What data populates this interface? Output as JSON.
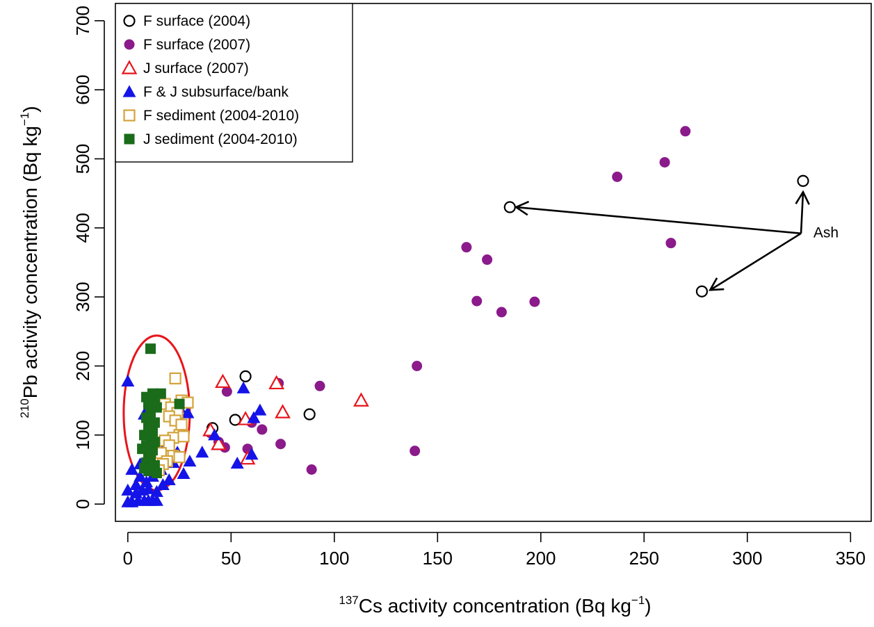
{
  "chart_data": {
    "type": "scatter",
    "title": "",
    "xlabel": {
      "pre": "",
      "sup": "137",
      "main": "Cs activity concentration (Bq kg",
      "unit_sup": "−1",
      "post": ")"
    },
    "ylabel": {
      "pre": "",
      "sup": "210",
      "main": "Pb activity concentration (Bq kg",
      "unit_sup": "−1",
      "post": ")"
    },
    "xlim": [
      -6,
      360
    ],
    "ylim": [
      -25,
      725
    ],
    "xticks": [
      0,
      50,
      100,
      150,
      200,
      250,
      300,
      350
    ],
    "yticks": [
      0,
      100,
      200,
      300,
      400,
      500,
      600,
      700
    ],
    "grid": false,
    "legend_position": "top-left",
    "series": [
      {
        "name": "F surface (2004)",
        "marker": "circle-open",
        "color": "#000000",
        "points": [
          [
            57,
            185
          ],
          [
            52,
            122
          ],
          [
            41,
            110
          ],
          [
            88,
            130
          ],
          [
            185,
            430
          ],
          [
            327,
            468
          ],
          [
            278,
            308
          ]
        ]
      },
      {
        "name": "F surface (2007)",
        "marker": "circle-filled",
        "color": "#8b1a8b",
        "points": [
          [
            270,
            540
          ],
          [
            260,
            495
          ],
          [
            237,
            474
          ],
          [
            263,
            378
          ],
          [
            164,
            372
          ],
          [
            174,
            354
          ],
          [
            169,
            294
          ],
          [
            181,
            278
          ],
          [
            197,
            293
          ],
          [
            140,
            200
          ],
          [
            93,
            171
          ],
          [
            73,
            175
          ],
          [
            48,
            163
          ],
          [
            60,
            118
          ],
          [
            65,
            108
          ],
          [
            44,
            90
          ],
          [
            47,
            82
          ],
          [
            58,
            80
          ],
          [
            74,
            87
          ],
          [
            89,
            50
          ],
          [
            139,
            77
          ],
          [
            40,
            103
          ]
        ]
      },
      {
        "name": "J surface (2007)",
        "marker": "triangle-open",
        "color": "#e8141b",
        "points": [
          [
            46,
            177
          ],
          [
            72,
            175
          ],
          [
            113,
            150
          ],
          [
            75,
            133
          ],
          [
            57,
            123
          ],
          [
            44,
            87
          ],
          [
            58,
            66
          ],
          [
            40,
            107
          ]
        ]
      },
      {
        "name": "F & J subsurface/bank",
        "marker": "triangle-filled",
        "color": "#1414e8",
        "points": [
          [
            0,
            178
          ],
          [
            56,
            168
          ],
          [
            64,
            136
          ],
          [
            61,
            125
          ],
          [
            42,
            100
          ],
          [
            60,
            72
          ],
          [
            53,
            59
          ],
          [
            36,
            75
          ],
          [
            30,
            62
          ],
          [
            27,
            44
          ],
          [
            29,
            132
          ],
          [
            2,
            50
          ],
          [
            4,
            28
          ],
          [
            6,
            40
          ],
          [
            0,
            20
          ],
          [
            0,
            3
          ],
          [
            2,
            3
          ],
          [
            5,
            5
          ],
          [
            8,
            5
          ],
          [
            10,
            5
          ],
          [
            12,
            5
          ],
          [
            14,
            5
          ],
          [
            4,
            16
          ],
          [
            7,
            20
          ],
          [
            10,
            22
          ],
          [
            14,
            18
          ],
          [
            17,
            28
          ],
          [
            20,
            35
          ],
          [
            12,
            40
          ],
          [
            9,
            32
          ],
          [
            6,
            58
          ],
          [
            16,
            50
          ],
          [
            18,
            85
          ],
          [
            22,
            60
          ],
          [
            24,
            75
          ],
          [
            21,
            95
          ],
          [
            25,
            140
          ],
          [
            8,
            130
          ]
        ]
      },
      {
        "name": "F sediment (2004-2010)",
        "marker": "square-open",
        "color": "#d4a33b",
        "points": [
          [
            23,
            182
          ],
          [
            26,
            150
          ],
          [
            29,
            147
          ],
          [
            18,
            145
          ],
          [
            21,
            140
          ],
          [
            24,
            132
          ],
          [
            20,
            127
          ],
          [
            23,
            121
          ],
          [
            26,
            115
          ],
          [
            25,
            100
          ],
          [
            22,
            96
          ],
          [
            27,
            98
          ],
          [
            18,
            92
          ],
          [
            20,
            85
          ],
          [
            16,
            74
          ],
          [
            22,
            70
          ],
          [
            25,
            68
          ],
          [
            19,
            62
          ],
          [
            17,
            58
          ],
          [
            15,
            49
          ]
        ]
      },
      {
        "name": "J sediment (2004-2010)",
        "marker": "square-filled",
        "color": "#1a6b1a",
        "points": [
          [
            11,
            225
          ],
          [
            12,
            160
          ],
          [
            16,
            160
          ],
          [
            9,
            155
          ],
          [
            13,
            150
          ],
          [
            10,
            145
          ],
          [
            25,
            145
          ],
          [
            14,
            140
          ],
          [
            11,
            132
          ],
          [
            9,
            125
          ],
          [
            13,
            118
          ],
          [
            10,
            112
          ],
          [
            12,
            105
          ],
          [
            8,
            100
          ],
          [
            11,
            95
          ],
          [
            13,
            90
          ],
          [
            9,
            85
          ],
          [
            7,
            80
          ],
          [
            12,
            78
          ],
          [
            10,
            72
          ],
          [
            11,
            66
          ],
          [
            9,
            60
          ],
          [
            13,
            56
          ],
          [
            8,
            52
          ],
          [
            10,
            48
          ],
          [
            14,
            45
          ]
        ]
      }
    ],
    "annotations": [
      {
        "text": "Ash",
        "x": 332,
        "y": 386
      }
    ],
    "arrows": [
      {
        "from": [
          326,
          392
        ],
        "to": [
          188,
          430
        ]
      },
      {
        "from": [
          326,
          392
        ],
        "to": [
          327,
          452
        ]
      },
      {
        "from": [
          326,
          392
        ],
        "to": [
          282,
          310
        ]
      }
    ],
    "ellipse": {
      "cx": 14,
      "cy": 132,
      "rx": 16,
      "ry": 112,
      "color": "#e8141b"
    }
  }
}
